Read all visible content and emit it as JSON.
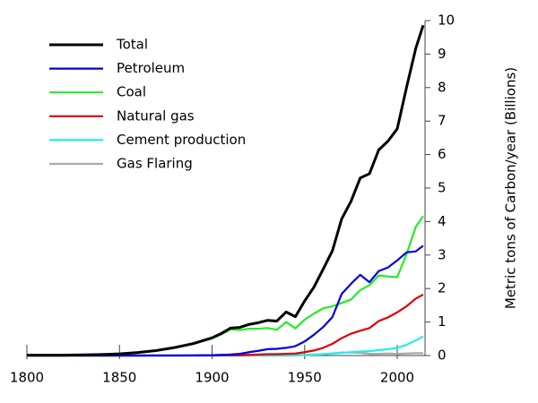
{
  "chart_data": {
    "type": "line",
    "y_label": "Metric tons of Carbon/year (Billions)",
    "x": [
      1800,
      1810,
      1820,
      1830,
      1840,
      1850,
      1860,
      1870,
      1880,
      1890,
      1900,
      1905,
      1910,
      1915,
      1920,
      1925,
      1930,
      1935,
      1940,
      1945,
      1950,
      1955,
      1960,
      1965,
      1970,
      1975,
      1980,
      1985,
      1990,
      1995,
      2000,
      2005,
      2010,
      2014
    ],
    "series": [
      {
        "name": "Total",
        "color": "#000000",
        "values": [
          0.01,
          0.01,
          0.01,
          0.02,
          0.03,
          0.05,
          0.09,
          0.15,
          0.24,
          0.36,
          0.53,
          0.66,
          0.82,
          0.84,
          0.93,
          0.98,
          1.05,
          1.03,
          1.3,
          1.16,
          1.63,
          2.04,
          2.58,
          3.13,
          4.08,
          4.6,
          5.3,
          5.43,
          6.14,
          6.4,
          6.77,
          8.0,
          9.17,
          9.86
        ]
      },
      {
        "name": "Petroleum",
        "color": "#0000dd",
        "values": [
          0,
          0,
          0,
          0,
          0,
          0,
          0,
          0.001,
          0.002,
          0.005,
          0.01,
          0.02,
          0.03,
          0.05,
          0.1,
          0.14,
          0.19,
          0.2,
          0.23,
          0.28,
          0.42,
          0.62,
          0.85,
          1.15,
          1.84,
          2.14,
          2.41,
          2.19,
          2.52,
          2.63,
          2.84,
          3.08,
          3.11,
          3.28
        ]
      },
      {
        "name": "Coal",
        "color": "#22ee22",
        "values": [
          0.01,
          0.01,
          0.01,
          0.02,
          0.03,
          0.05,
          0.09,
          0.15,
          0.24,
          0.35,
          0.51,
          0.63,
          0.78,
          0.76,
          0.8,
          0.8,
          0.82,
          0.77,
          1.0,
          0.81,
          1.07,
          1.25,
          1.41,
          1.47,
          1.57,
          1.67,
          1.95,
          2.1,
          2.39,
          2.36,
          2.34,
          3.02,
          3.84,
          4.16
        ]
      },
      {
        "name": "Natural gas",
        "color": "#dd0000",
        "values": [
          0,
          0,
          0,
          0,
          0,
          0,
          0,
          0,
          0,
          0.001,
          0.005,
          0.008,
          0.01,
          0.01,
          0.02,
          0.03,
          0.04,
          0.04,
          0.05,
          0.06,
          0.1,
          0.15,
          0.23,
          0.35,
          0.52,
          0.65,
          0.74,
          0.82,
          1.03,
          1.14,
          1.29,
          1.47,
          1.7,
          1.82
        ]
      },
      {
        "name": "Cement production",
        "color": "#22eeee",
        "values": [
          0,
          0,
          0,
          0,
          0,
          0,
          0,
          0,
          0,
          0,
          0,
          0,
          0,
          0,
          0.01,
          0.01,
          0.01,
          0.01,
          0.01,
          0.01,
          0.02,
          0.03,
          0.04,
          0.06,
          0.08,
          0.1,
          0.12,
          0.13,
          0.16,
          0.19,
          0.23,
          0.32,
          0.45,
          0.57
        ]
      },
      {
        "name": "Gas Flaring",
        "color": "#aaaaaa",
        "values": [
          0,
          0,
          0,
          0,
          0,
          0,
          0,
          0,
          0,
          0,
          0,
          0,
          0,
          0,
          0,
          0,
          0,
          0,
          0,
          0,
          0.02,
          0.03,
          0.04,
          0.06,
          0.09,
          0.09,
          0.08,
          0.05,
          0.05,
          0.06,
          0.05,
          0.06,
          0.07,
          0.07
        ]
      }
    ],
    "xlim": [
      1800,
      2015
    ],
    "xticks": [
      1800,
      1850,
      1900,
      1950,
      2000
    ],
    "ylim": [
      0,
      10
    ],
    "yticks": [
      0,
      1,
      2,
      3,
      4,
      5,
      6,
      7,
      8,
      9,
      10
    ],
    "y_axis_side": "right",
    "legend": "upper left",
    "grid": false
  }
}
